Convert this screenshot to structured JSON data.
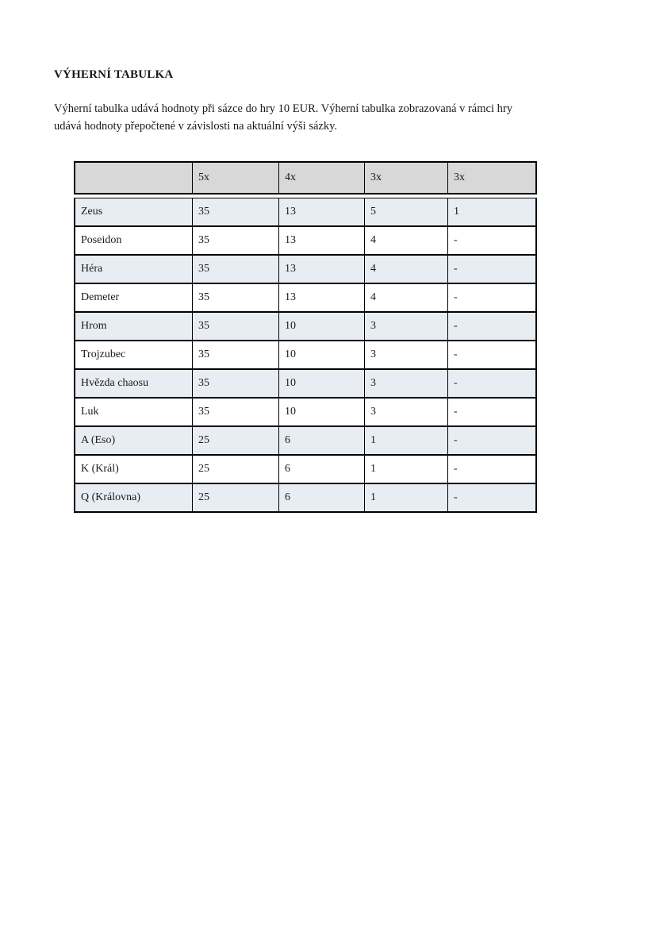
{
  "document": {
    "title": "VÝHERNÍ TABULKA",
    "paragraph": {
      "lines": [
        "Výherní tabulka udává hodnoty při sázce do hry 10 EUR. Výherní tabulka zobrazovaná v rámci hry",
        "udává hodnoty přepočtené v závislosti na aktuální výši sázky."
      ]
    }
  },
  "colors": {
    "header_background": "#d8d8d8",
    "stripe_background": "#e8edf3",
    "border": "#000000",
    "text": "#1a1a1a"
  },
  "table": {
    "headers": [
      "",
      "5x",
      "4x",
      "3x",
      "3x"
    ],
    "rows": [
      {
        "label": "Zeus",
        "values": [
          "35",
          "13",
          "5",
          "1"
        ]
      },
      {
        "label": "Poseidon",
        "values": [
          "35",
          "13",
          "4",
          "-"
        ]
      },
      {
        "label": "Héra",
        "values": [
          "35",
          "13",
          "4",
          "-"
        ]
      },
      {
        "label": "Demeter",
        "values": [
          "35",
          "13",
          "4",
          "-"
        ]
      },
      {
        "label": "Hrom",
        "values": [
          "35",
          "10",
          "3",
          "-"
        ]
      },
      {
        "label": "Trojzubec",
        "values": [
          "35",
          "10",
          "3",
          "-"
        ]
      },
      {
        "label": "Hvězda chaosu",
        "values": [
          "35",
          "10",
          "3",
          "-"
        ]
      },
      {
        "label": "Luk",
        "values": [
          "35",
          "10",
          "3",
          "-"
        ]
      },
      {
        "label": "A (Eso)",
        "values": [
          "25",
          "6",
          "1",
          "-"
        ]
      },
      {
        "label": "K (Král)",
        "values": [
          "25",
          "6",
          "1",
          "-"
        ]
      },
      {
        "label": "Q (Královna)",
        "values": [
          "25",
          "6",
          "1",
          "-"
        ]
      }
    ]
  }
}
